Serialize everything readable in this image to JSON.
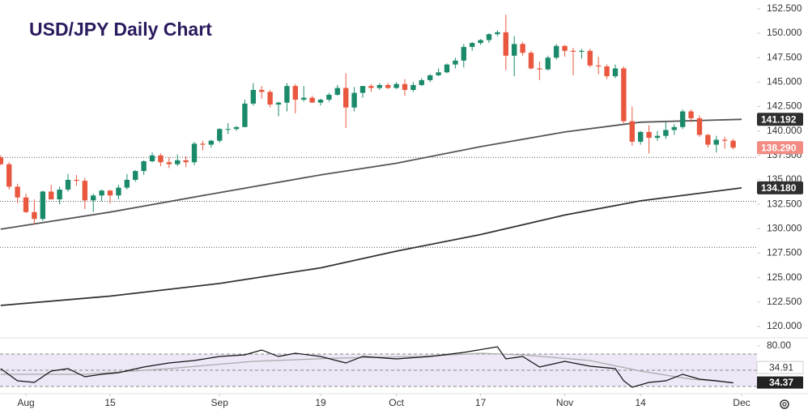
{
  "chart_data": {
    "type": "candlestick",
    "title": "USD/JPY Daily Chart",
    "up_color": "#1b8a6b",
    "down_color": "#e9573f",
    "x": [
      0,
      1,
      2,
      3,
      4,
      5,
      6,
      7,
      8,
      9,
      10,
      11,
      12,
      13,
      14,
      15,
      16,
      17,
      18,
      19,
      20,
      21,
      22,
      23,
      24,
      25,
      26,
      27,
      28,
      29,
      30,
      31,
      32,
      33,
      34,
      35,
      36,
      37,
      38,
      39,
      40,
      41,
      42,
      43,
      44,
      45,
      46,
      47,
      48,
      49,
      50,
      51,
      52,
      53,
      54,
      55,
      56,
      57,
      58,
      59,
      60,
      61,
      62,
      63,
      64,
      65,
      66,
      67,
      68,
      69,
      70,
      71,
      72,
      73,
      74,
      75,
      76,
      77,
      78,
      79,
      80,
      81,
      82,
      83,
      84,
      85,
      86,
      87
    ],
    "open": [
      137.3,
      136.6,
      134.3,
      133.2,
      131.7,
      131.0,
      133.8,
      133.0,
      134.0,
      135.0,
      134.9,
      132.9,
      133.4,
      133.9,
      133.4,
      134.2,
      135.0,
      135.9,
      136.9,
      137.5,
      136.8,
      136.6,
      137.0,
      136.8,
      138.7,
      138.6,
      139.0,
      140.2,
      140.2,
      140.4,
      142.8,
      144.2,
      144.0,
      142.7,
      142.9,
      144.6,
      143.2,
      143.4,
      142.9,
      143.2,
      143.7,
      144.4,
      142.4,
      143.9,
      144.6,
      144.4,
      144.7,
      144.4,
      144.8,
      144.2,
      144.7,
      145.2,
      145.7,
      146.0,
      146.8,
      147.2,
      148.6,
      149.0,
      149.3,
      149.9,
      150.1,
      147.7,
      148.9,
      148.0,
      146.4,
      146.3,
      147.5,
      148.7,
      148.2,
      148.1,
      148.2,
      146.7,
      146.6,
      145.6,
      146.4,
      141.0,
      138.9,
      139.9,
      139.3,
      139.5,
      140.1,
      140.4,
      142.0,
      141.3,
      139.6,
      138.6,
      139.1,
      139.0
    ],
    "high": [
      137.5,
      136.8,
      134.6,
      133.6,
      133.0,
      133.9,
      134.5,
      134.3,
      135.6,
      135.5,
      135.2,
      133.6,
      134.0,
      134.0,
      134.5,
      135.6,
      136.0,
      137.0,
      137.8,
      137.7,
      137.3,
      137.6,
      137.4,
      138.9,
      139.0,
      139.1,
      140.3,
      140.8,
      140.5,
      143.2,
      144.9,
      144.6,
      144.2,
      143.0,
      144.9,
      144.8,
      144.6,
      143.6,
      143.3,
      143.9,
      144.7,
      145.9,
      144.5,
      144.6,
      144.8,
      144.9,
      144.9,
      145.0,
      145.3,
      145.0,
      145.4,
      145.8,
      146.4,
      146.9,
      147.5,
      148.9,
      149.1,
      149.4,
      150.0,
      150.3,
      151.9,
      149.7,
      149.1,
      148.2,
      147.1,
      147.7,
      148.9,
      148.8,
      148.5,
      148.4,
      148.4,
      147.6,
      146.8,
      146.8,
      146.6,
      142.5,
      140.0,
      140.6,
      140.0,
      140.9,
      140.7,
      142.2,
      142.2,
      141.6,
      139.7,
      139.5,
      139.4,
      139.2
    ],
    "low": [
      136.5,
      134.0,
      132.6,
      131.6,
      130.4,
      130.8,
      133.0,
      132.5,
      133.8,
      134.4,
      132.0,
      131.7,
      132.8,
      132.6,
      133.0,
      134.0,
      134.8,
      135.5,
      136.8,
      136.4,
      136.2,
      136.4,
      136.3,
      136.5,
      138.0,
      138.3,
      138.8,
      139.7,
      140.0,
      140.4,
      142.6,
      143.3,
      142.4,
      141.5,
      142.0,
      141.8,
      143.0,
      142.9,
      142.6,
      143.0,
      143.6,
      140.3,
      142.0,
      143.4,
      144.0,
      144.2,
      144.3,
      144.3,
      143.6,
      144.0,
      144.6,
      145.0,
      145.6,
      145.9,
      146.4,
      146.5,
      148.2,
      148.8,
      149.0,
      149.7,
      146.2,
      145.6,
      147.7,
      146.3,
      145.2,
      146.2,
      147.3,
      147.6,
      145.7,
      147.4,
      146.5,
      145.8,
      145.3,
      145.4,
      140.8,
      138.5,
      138.6,
      137.7,
      139.0,
      139.2,
      139.6,
      140.2,
      140.9,
      139.4,
      138.3,
      137.8,
      138.2,
      138.1
    ],
    "close": [
      136.6,
      134.3,
      133.2,
      131.7,
      131.0,
      133.8,
      133.0,
      134.0,
      135.0,
      134.9,
      132.9,
      133.4,
      133.9,
      133.4,
      134.2,
      135.0,
      135.9,
      136.9,
      137.5,
      136.8,
      136.6,
      137.0,
      136.8,
      138.7,
      138.6,
      139.0,
      140.2,
      140.2,
      140.4,
      142.8,
      144.2,
      144.0,
      142.7,
      142.9,
      144.6,
      143.2,
      143.4,
      142.9,
      143.2,
      143.7,
      144.4,
      142.4,
      143.9,
      144.6,
      144.4,
      144.7,
      144.4,
      144.8,
      144.2,
      144.7,
      145.2,
      145.7,
      146.0,
      146.8,
      147.2,
      148.6,
      149.0,
      149.3,
      149.9,
      150.1,
      147.7,
      148.9,
      148.0,
      146.4,
      146.3,
      147.5,
      148.7,
      148.2,
      148.1,
      148.2,
      146.7,
      146.6,
      145.6,
      146.4,
      141.0,
      138.9,
      139.9,
      139.3,
      139.5,
      140.1,
      140.4,
      142.0,
      141.3,
      139.6,
      138.6,
      139.1,
      139.0,
      138.29
    ],
    "last_close_label": "138.290",
    "lines": [
      {
        "color": "#555555",
        "x": [
          0,
          13,
          26,
          38,
          47,
          57,
          67,
          76,
          88
        ],
        "values": [
          129.95,
          131.7,
          133.7,
          135.5,
          136.7,
          138.4,
          139.9,
          140.9,
          141.192
        ]
      },
      {
        "color": "#333333",
        "x": [
          0,
          13,
          26,
          38,
          47,
          57,
          67,
          76,
          88
        ],
        "values": [
          122.15,
          123.1,
          124.4,
          126.0,
          127.7,
          129.4,
          131.4,
          132.85,
          134.18
        ],
        "last_label": "134.180"
      }
    ],
    "levels": [
      137.3,
      132.8,
      128.1
    ],
    "xlim": [
      -0.08,
      89.83
    ],
    "ylim": [
      119,
      153.4
    ],
    "yticks": [
      {
        "value": 120,
        "label": "120.000"
      },
      {
        "value": 122.5,
        "label": "122.500"
      },
      {
        "value": 125,
        "label": "125.000"
      },
      {
        "value": 127.5,
        "label": "127.500"
      },
      {
        "value": 130,
        "label": "130.000"
      },
      {
        "value": 132.5,
        "label": "132.500"
      },
      {
        "value": 135,
        "label": "135.000"
      },
      {
        "value": 137.5,
        "label": "137.500"
      },
      {
        "value": 140,
        "label": "140.000"
      },
      {
        "value": 142.5,
        "label": "142.500"
      },
      {
        "value": 145,
        "label": "145.000"
      },
      {
        "value": 147.5,
        "label": "147.500"
      },
      {
        "value": 150,
        "label": "150.000"
      },
      {
        "value": 152.5,
        "label": "152.500"
      }
    ],
    "xticks": [
      {
        "value": 3,
        "label": "Aug"
      },
      {
        "value": 13,
        "label": "15"
      },
      {
        "value": 26,
        "label": "Sep"
      },
      {
        "value": 38,
        "label": "19"
      },
      {
        "value": 47,
        "label": "Oct"
      },
      {
        "value": 57,
        "label": "17"
      },
      {
        "value": 67,
        "label": "Nov"
      },
      {
        "value": 76,
        "label": "14"
      },
      {
        "value": 88,
        "label": "Dec"
      }
    ],
    "rsi": {
      "color": "#111111",
      "x": [
        0,
        2,
        4,
        6,
        8,
        10,
        12,
        14,
        17,
        20,
        23,
        26,
        29,
        31,
        33,
        35,
        38,
        41,
        43,
        47,
        51,
        55,
        59,
        60,
        62,
        64,
        67,
        70,
        73,
        74,
        75,
        77,
        79,
        81,
        83,
        85,
        87
      ],
      "values": [
        52,
        37,
        35,
        49,
        52,
        42,
        45,
        47,
        54,
        59,
        62,
        67,
        69,
        75,
        67,
        71,
        67,
        59,
        67,
        64,
        67,
        72,
        79,
        64,
        67,
        54,
        61,
        55,
        52,
        37,
        29,
        35,
        37,
        45,
        39,
        37,
        34.37
      ],
      "ma_color": "#aaaaaa",
      "ma_x": [
        0,
        10,
        20,
        30,
        40,
        50,
        57,
        62,
        70,
        76,
        82,
        87
      ],
      "ma_values": [
        45,
        45,
        52,
        61,
        65,
        67,
        71,
        69,
        62,
        49,
        39,
        34.91
      ],
      "ylim": [
        22,
        89
      ],
      "ticks": [
        {
          "value": 80,
          "label": "80.00"
        }
      ],
      "levels": [
        70,
        50,
        30
      ],
      "band_color": "#ede7f6"
    }
  }
}
